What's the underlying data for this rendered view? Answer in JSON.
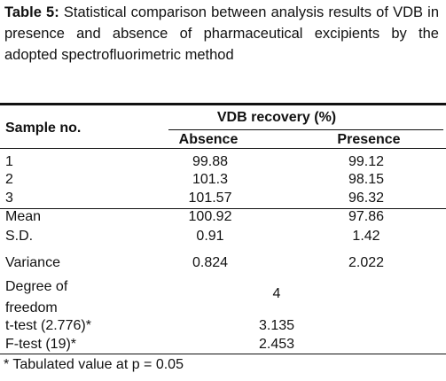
{
  "caption": {
    "label": "Table 5:",
    "text": "Statistical comparison between analysis results of VDB in presence and absence of pharmaceutical excipients by the adopted spectrofluorimetric method"
  },
  "table": {
    "header_sample": "Sample no.",
    "group_header": "VDB recovery (%)",
    "columns": [
      "Absence",
      "Presence"
    ],
    "rows": [
      [
        "1",
        "99.88",
        "99.12"
      ],
      [
        "2",
        "101.3",
        "98.15"
      ],
      [
        "3",
        "101.57",
        "96.32"
      ],
      [
        "Mean",
        "100.92",
        "97.86"
      ],
      [
        "S.D.",
        "0.91",
        "1.42"
      ],
      [
        "Variance",
        "0.824",
        "2.022"
      ]
    ],
    "merged_rows": [
      [
        "Degree of freedom",
        "4"
      ],
      [
        "t-test (2.776)*",
        "3.135"
      ],
      [
        "F-test (19)*",
        "2.453"
      ]
    ]
  },
  "footnote": "* Tabulated value at p = 0.05"
}
